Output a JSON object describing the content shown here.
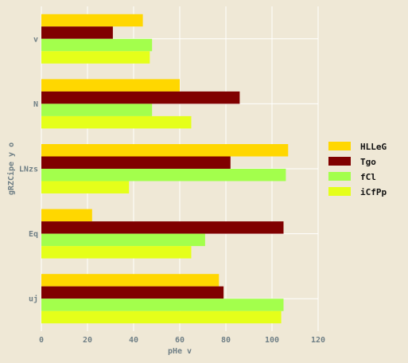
{
  "chart_data": {
    "type": "bar",
    "orientation": "horizontal",
    "categories": [
      "v",
      "N",
      "LNzs",
      "Eq",
      "uj"
    ],
    "series": [
      {
        "name": "HLLeG",
        "color": "#ffd700",
        "values": [
          44,
          60,
          107,
          22,
          77
        ]
      },
      {
        "name": "Tgo",
        "color": "#800000",
        "values": [
          31,
          86,
          82,
          105,
          79
        ]
      },
      {
        "name": "fCl",
        "color": "#a3ff4c",
        "values": [
          48,
          48,
          106,
          71,
          105
        ]
      },
      {
        "name": "iCfPp",
        "color": "#e5ff1a",
        "values": [
          47,
          65,
          38,
          65,
          104
        ]
      }
    ],
    "xlabel": "pHe v",
    "ylabel": "gRZCipe y o",
    "xlim": [
      0,
      120
    ],
    "xticks": [
      "0",
      "20",
      "40",
      "60",
      "80",
      "100",
      "120"
    ],
    "grid": true,
    "legend_position": "right"
  }
}
